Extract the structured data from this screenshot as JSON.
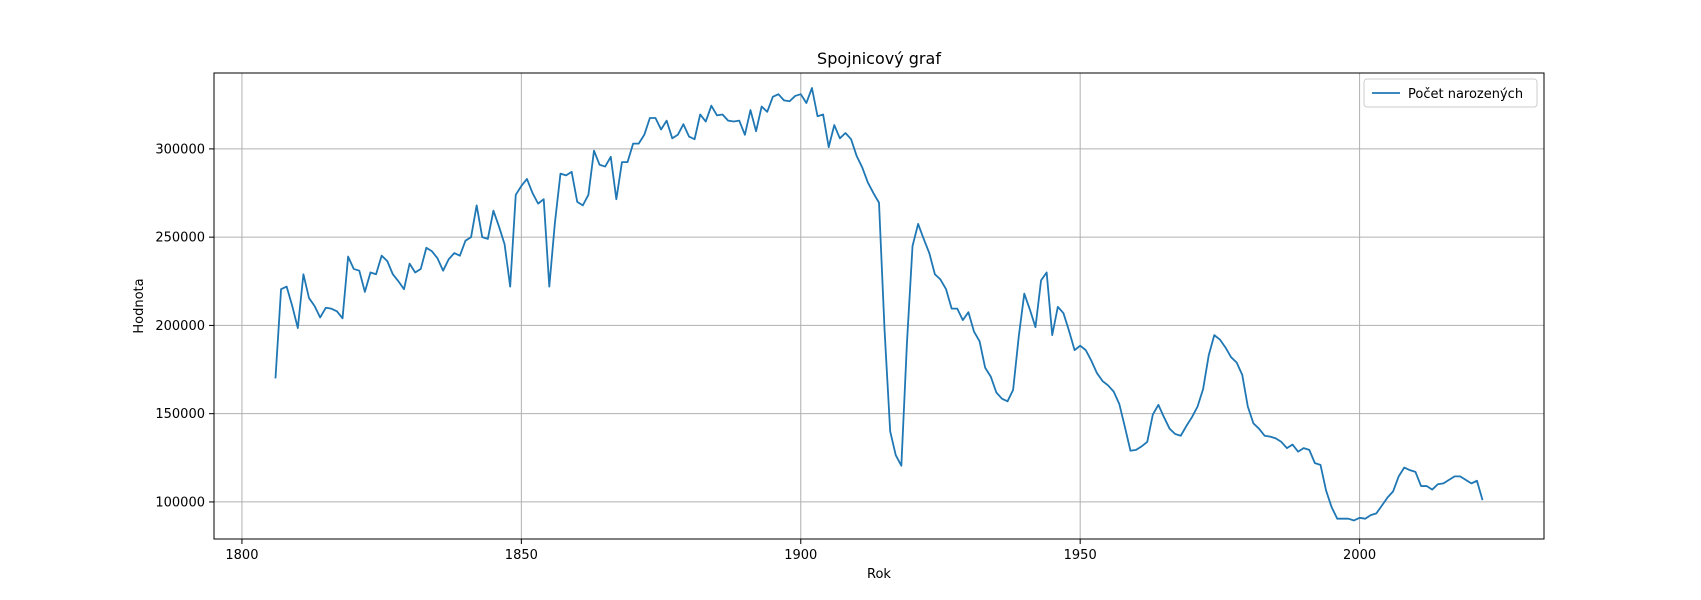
{
  "chart_data": {
    "type": "line",
    "title": "Spojnicový graf",
    "xlabel": "Rok",
    "ylabel": "Hodnota",
    "xlim": [
      1795,
      2033
    ],
    "ylim": [
      79000,
      343000
    ],
    "x_ticks": [
      1800,
      1850,
      1900,
      1950,
      2000
    ],
    "y_ticks": [
      100000,
      150000,
      200000,
      250000,
      300000
    ],
    "x_tick_labels": [
      "1800",
      "1850",
      "1900",
      "1950",
      "2000"
    ],
    "y_tick_labels": [
      "100000",
      "150000",
      "200000",
      "250000",
      "300000"
    ],
    "grid": true,
    "legend_position": "top-right",
    "colors": {
      "series": "#1f77b4",
      "grid": "#b0b0b0",
      "axes": "#000000",
      "background": "#ffffff"
    },
    "series": [
      {
        "name": "Počet narozených",
        "x": [
          1806,
          1807,
          1808,
          1809,
          1810,
          1811,
          1812,
          1813,
          1814,
          1815,
          1816,
          1817,
          1818,
          1819,
          1820,
          1821,
          1822,
          1823,
          1824,
          1825,
          1826,
          1827,
          1828,
          1829,
          1830,
          1831,
          1832,
          1833,
          1834,
          1835,
          1836,
          1837,
          1838,
          1839,
          1840,
          1841,
          1842,
          1843,
          1844,
          1845,
          1846,
          1847,
          1848,
          1849,
          1850,
          1851,
          1852,
          1853,
          1854,
          1855,
          1856,
          1857,
          1858,
          1859,
          1860,
          1861,
          1862,
          1863,
          1864,
          1865,
          1866,
          1867,
          1868,
          1869,
          1870,
          1871,
          1872,
          1873,
          1874,
          1875,
          1876,
          1877,
          1878,
          1879,
          1880,
          1881,
          1882,
          1883,
          1884,
          1885,
          1886,
          1887,
          1888,
          1889,
          1890,
          1891,
          1892,
          1893,
          1894,
          1895,
          1896,
          1897,
          1898,
          1899,
          1900,
          1901,
          1902,
          1903,
          1904,
          1905,
          1906,
          1907,
          1908,
          1909,
          1910,
          1911,
          1912,
          1913,
          1914,
          1915,
          1916,
          1917,
          1918,
          1919,
          1920,
          1921,
          1922,
          1923,
          1924,
          1925,
          1926,
          1927,
          1928,
          1929,
          1930,
          1931,
          1932,
          1933,
          1934,
          1935,
          1936,
          1937,
          1938,
          1939,
          1940,
          1941,
          1942,
          1943,
          1944,
          1945,
          1946,
          1947,
          1948,
          1949,
          1950,
          1951,
          1952,
          1953,
          1954,
          1955,
          1956,
          1957,
          1958,
          1959,
          1960,
          1961,
          1962,
          1963,
          1964,
          1965,
          1966,
          1967,
          1968,
          1969,
          1970,
          1971,
          1972,
          1973,
          1974,
          1975,
          1976,
          1977,
          1978,
          1979,
          1980,
          1981,
          1982,
          1983,
          1984,
          1985,
          1986,
          1987,
          1988,
          1989,
          1990,
          1991,
          1992,
          1993,
          1994,
          1995,
          1996,
          1997,
          1998,
          1999,
          2000,
          2001,
          2002,
          2003,
          2004,
          2005,
          2006,
          2007,
          2008,
          2009,
          2010,
          2011,
          2012,
          2013,
          2014,
          2015,
          2016,
          2017,
          2018,
          2019,
          2020,
          2021,
          2022
        ],
        "values": [
          170000,
          220500,
          222000,
          211000,
          198500,
          229000,
          215500,
          211000,
          204500,
          210000,
          209500,
          208000,
          204000,
          239000,
          232000,
          231000,
          219000,
          230000,
          229000,
          239500,
          236500,
          229000,
          225000,
          220500,
          235000,
          230000,
          232000,
          244000,
          242000,
          238000,
          231000,
          237500,
          241000,
          239500,
          248000,
          250000,
          268000,
          250000,
          249000,
          265000,
          256000,
          246000,
          222000,
          274000,
          279000,
          283000,
          275000,
          269000,
          271500,
          222000,
          258000,
          286000,
          285000,
          287000,
          270000,
          268000,
          274000,
          299000,
          291000,
          290000,
          295500,
          271500,
          292500,
          292500,
          303000,
          303000,
          308000,
          317500,
          317500,
          311000,
          316000,
          306000,
          308000,
          314000,
          307000,
          305500,
          319500,
          315500,
          324500,
          319000,
          319500,
          316000,
          315500,
          316000,
          308000,
          322000,
          310000,
          324000,
          321000,
          329500,
          331000,
          327500,
          327000,
          330000,
          331000,
          326000,
          334500,
          318500,
          319500,
          301000,
          313500,
          306000,
          309000,
          305500,
          296000,
          289500,
          281000,
          275000,
          269500,
          197000,
          140000,
          126500,
          120500,
          190000,
          245000,
          257500,
          249000,
          241000,
          229000,
          226000,
          220500,
          209500,
          209500,
          203000,
          207500,
          196500,
          191000,
          176000,
          171000,
          162000,
          158500,
          157000,
          163500,
          193500,
          218000,
          209000,
          199000,
          225500,
          230000,
          194500,
          210500,
          207000,
          197000,
          186000,
          188500,
          186000,
          180000,
          173000,
          168500,
          166000,
          162500,
          155500,
          142500,
          129000,
          129500,
          131500,
          134000,
          149500,
          155000,
          148000,
          141500,
          138500,
          137500,
          143000,
          148000,
          154000,
          164000,
          183000,
          194500,
          192000,
          187500,
          182000,
          179000,
          172000,
          154000,
          144500,
          141500,
          137500,
          137000,
          136000,
          134000,
          130500,
          132500,
          128500,
          130500,
          129500,
          122000,
          121000,
          106500,
          97000,
          90500,
          90500,
          90500,
          89500,
          91000,
          90500,
          92500,
          93500,
          98000,
          102500,
          106000,
          114500,
          119500,
          118000,
          117000,
          109000,
          109000,
          107000,
          110000,
          110500,
          112500,
          114500,
          114500,
          112500,
          110500,
          112000,
          101000
        ]
      }
    ]
  }
}
